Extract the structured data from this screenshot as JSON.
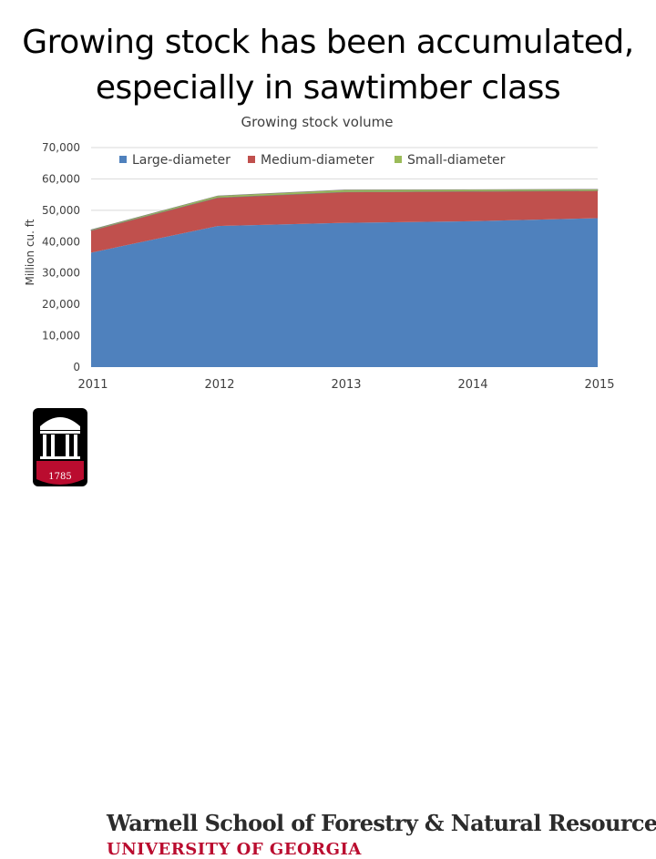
{
  "slide": {
    "title_line1": "Growing stock has been accumulated,",
    "title_line2": "especially in sawtimber class"
  },
  "chart_data": {
    "type": "area",
    "stacked": true,
    "title": "Growing stock volume",
    "xlabel": "",
    "ylabel": "Million cu. ft",
    "x": [
      "2011",
      "2012",
      "2013",
      "2014",
      "2015"
    ],
    "ylim": [
      0,
      70000
    ],
    "yticks": [
      "0",
      "10,000",
      "20,000",
      "30,000",
      "40,000",
      "50,000",
      "60,000",
      "70,000"
    ],
    "ytick_values": [
      0,
      10000,
      20000,
      30000,
      40000,
      50000,
      60000,
      70000
    ],
    "grid": true,
    "legend_position": "top",
    "series": [
      {
        "name": "Large-diameter",
        "values": [
          36500,
          45000,
          46000,
          46500,
          47500
        ],
        "color": "#4f81bd"
      },
      {
        "name": "Medium-diameter",
        "values": [
          7000,
          9000,
          9800,
          9500,
          8700
        ],
        "color": "#c0504d"
      },
      {
        "name": "Small-diameter",
        "values": [
          300,
          600,
          700,
          600,
          500
        ],
        "color": "#9bbb59"
      }
    ]
  },
  "logo": {
    "school_name": "Warnell School of Forestry & Natural Resources",
    "university_name": "UNIVERSITY OF GEORGIA",
    "seal_year": "1785",
    "seal_color": "#ba0c2f"
  }
}
